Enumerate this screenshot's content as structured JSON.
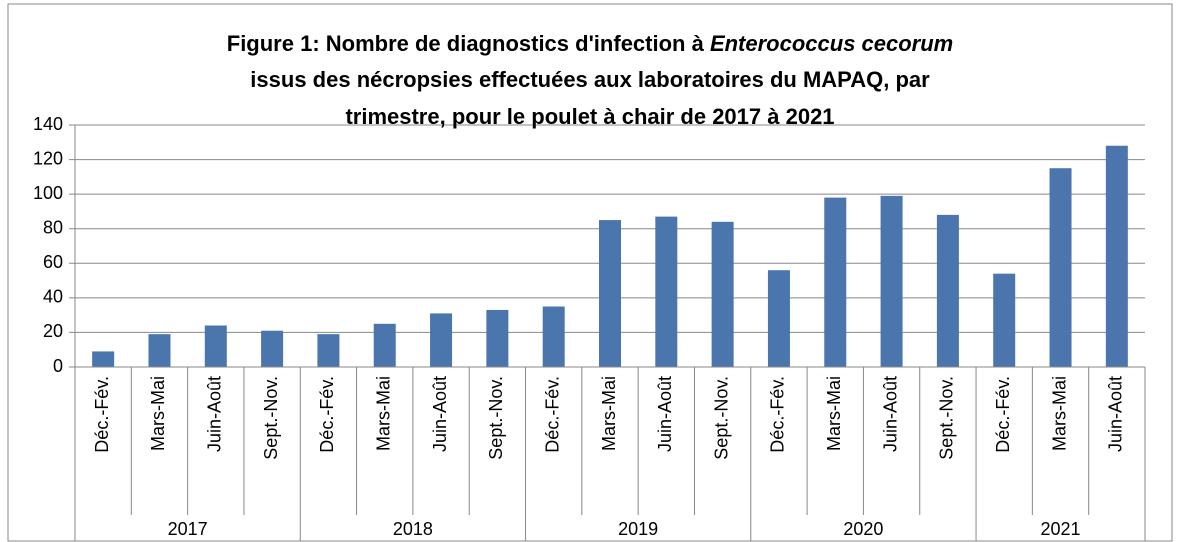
{
  "chart_data": {
    "type": "bar",
    "title": [
      "Figure 1: Nombre de diagnostics d'infection à ",
      "Enterococcus cecorum",
      "issus des nécropsies effectuées aux laboratoires du MAPAQ, par",
      "trimestre, pour le poulet à chair de 2017 à 2021"
    ],
    "groups": [
      {
        "label": "2017",
        "categories": [
          "Déc.-Fév.",
          "Mars-Mai",
          "Juin-Août",
          "Sept.-Nov."
        ]
      },
      {
        "label": "2018",
        "categories": [
          "Déc.-Fév.",
          "Mars-Mai",
          "Juin-Août",
          "Sept.-Nov."
        ]
      },
      {
        "label": "2019",
        "categories": [
          "Déc.-Fév.",
          "Mars-Mai",
          "Juin-Août",
          "Sept.-Nov."
        ]
      },
      {
        "label": "2020",
        "categories": [
          "Déc.-Fév.",
          "Mars-Mai",
          "Juin-Août",
          "Sept.-Nov."
        ]
      },
      {
        "label": "2021",
        "categories": [
          "Déc.-Fév.",
          "Mars-Mai",
          "Juin-Août"
        ]
      }
    ],
    "values": [
      9,
      19,
      24,
      21,
      19,
      25,
      31,
      33,
      35,
      85,
      87,
      84,
      56,
      98,
      99,
      88,
      54,
      115,
      128
    ],
    "color": "#4a76ad",
    "ylim": [
      0,
      140
    ],
    "yticks": [
      0,
      20,
      40,
      60,
      80,
      100,
      120,
      140
    ],
    "grid": true
  }
}
